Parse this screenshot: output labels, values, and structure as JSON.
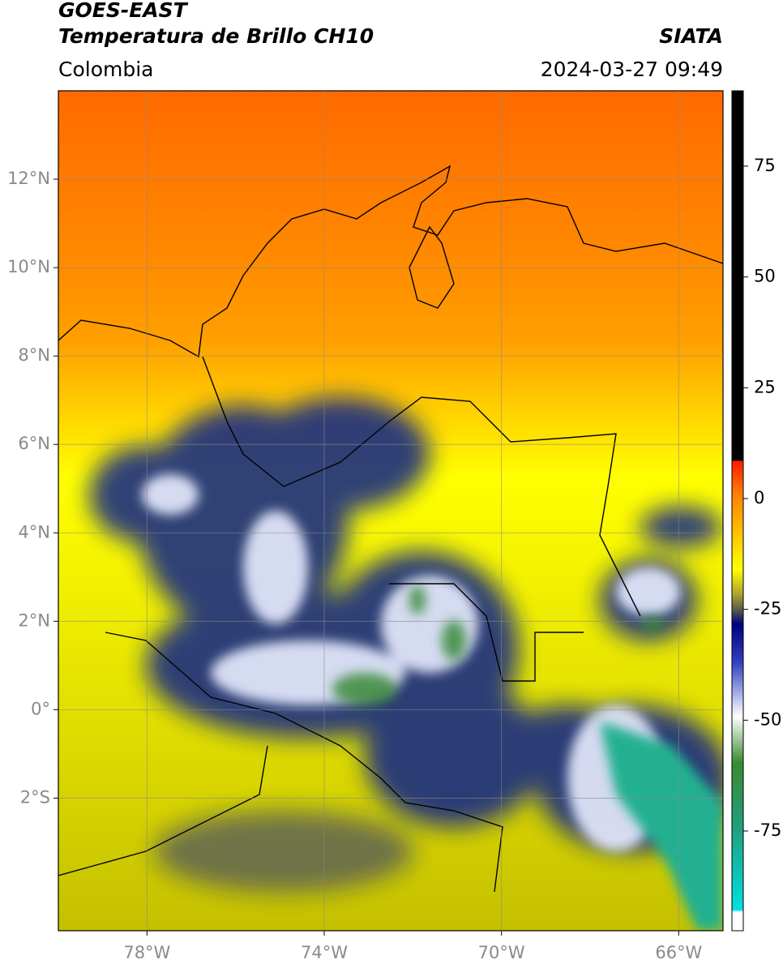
{
  "header": {
    "title": "GOES-EAST",
    "subtitle": "Temperatura de Brillo CH10",
    "region": "Colombia",
    "source": "SIATA",
    "datetime": "2024-03-27 09:49"
  },
  "map": {
    "xlim": [
      -80,
      -65
    ],
    "ylim": [
      -5,
      14
    ],
    "xticks": [
      {
        "value": -78,
        "label": "78°W"
      },
      {
        "value": -74,
        "label": "74°W"
      },
      {
        "value": -70,
        "label": "70°W"
      },
      {
        "value": -66,
        "label": "66°W"
      }
    ],
    "yticks": [
      {
        "value": 12,
        "label": "12°N"
      },
      {
        "value": 10,
        "label": "10°N"
      },
      {
        "value": 8,
        "label": "8°N"
      },
      {
        "value": 6,
        "label": "6°N"
      },
      {
        "value": 4,
        "label": "4°N"
      },
      {
        "value": 2,
        "label": "2°N"
      },
      {
        "value": 0,
        "label": "0°"
      },
      {
        "value": -2,
        "label": "2°S"
      }
    ],
    "grid": true
  },
  "colorbar": {
    "lim": [
      -97.5,
      92
    ],
    "ticks": [
      75,
      50,
      25,
      0,
      -25,
      -50,
      -75
    ]
  }
}
